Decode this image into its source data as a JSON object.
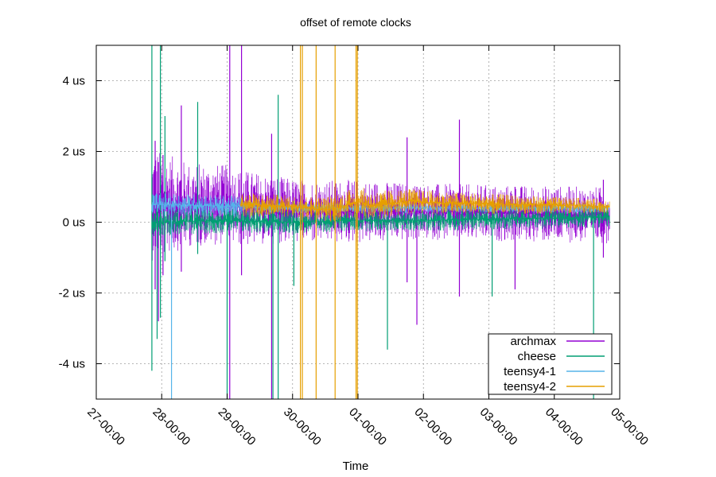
{
  "chart_data": {
    "type": "line",
    "title": "offset of remote clocks",
    "xlabel": "Time",
    "ylabel": "",
    "xlim": [
      0,
      8
    ],
    "ylim": [
      -5,
      5
    ],
    "x_ticks": [
      {
        "value": 0,
        "label": "27-00:00"
      },
      {
        "value": 1,
        "label": "28-00:00"
      },
      {
        "value": 2,
        "label": "29-00:00"
      },
      {
        "value": 3,
        "label": "30-00:00"
      },
      {
        "value": 4,
        "label": "01-00:00"
      },
      {
        "value": 5,
        "label": "02-00:00"
      },
      {
        "value": 6,
        "label": "03-00:00"
      },
      {
        "value": 7,
        "label": "04-00:00"
      },
      {
        "value": 8,
        "label": "05-00:00"
      }
    ],
    "y_ticks": [
      {
        "value": 4,
        "label": "4 us"
      },
      {
        "value": 2,
        "label": "2 us"
      },
      {
        "value": 0,
        "label": "0 us"
      },
      {
        "value": -2,
        "label": "-2 us"
      },
      {
        "value": -4,
        "label": "-4 us"
      }
    ],
    "grid": true,
    "legend_position": "bottom-right",
    "series": [
      {
        "name": "archmax",
        "color": "#9400d3",
        "x_start": 0.85,
        "x_end": 7.85,
        "center": [
          [
            0.85,
            0.5
          ],
          [
            2.0,
            0.5
          ],
          [
            2.25,
            0.4
          ],
          [
            3.3,
            0.3
          ],
          [
            4.0,
            0.3
          ],
          [
            5.0,
            0.3
          ],
          [
            7.85,
            0.2
          ]
        ],
        "halfwidth": [
          [
            0.85,
            1.6
          ],
          [
            1.4,
            1.2
          ],
          [
            2.2,
            1.1
          ],
          [
            3.0,
            0.9
          ],
          [
            4.0,
            0.9
          ],
          [
            5.0,
            0.8
          ],
          [
            7.85,
            0.8
          ]
        ],
        "spikes": [
          {
            "x": 0.9,
            "low": -1.9,
            "high": 2.3
          },
          {
            "x": 0.95,
            "low": -2.8,
            "high": 1.7
          },
          {
            "x": 1.02,
            "low": -1.5,
            "high": 1.9
          },
          {
            "x": 1.3,
            "low": -1.4,
            "high": 3.3
          },
          {
            "x": 2.04,
            "low": -5,
            "high": 5
          },
          {
            "x": 2.22,
            "low": -1.5,
            "high": 5
          },
          {
            "x": 2.68,
            "low": -5,
            "high": 2.5
          },
          {
            "x": 4.75,
            "low": -1.7,
            "high": 2.4
          },
          {
            "x": 4.9,
            "low": -2.9,
            "high": 1.0
          },
          {
            "x": 5.55,
            "low": -2.1,
            "high": 2.9
          },
          {
            "x": 6.4,
            "low": -1.9,
            "high": 1.0
          },
          {
            "x": 7.75,
            "low": -1.0,
            "high": 1.2
          }
        ]
      },
      {
        "name": "cheese",
        "color": "#009e73",
        "x_start": 0.85,
        "x_end": 7.85,
        "center": [
          [
            0.85,
            0.0
          ],
          [
            2.0,
            0.05
          ],
          [
            3.0,
            0.0
          ],
          [
            4.0,
            0.05
          ],
          [
            5.0,
            0.05
          ],
          [
            7.85,
            0.15
          ]
        ],
        "halfwidth": [
          [
            0.85,
            0.4
          ],
          [
            2.0,
            0.35
          ],
          [
            4.0,
            0.3
          ],
          [
            7.85,
            0.3
          ]
        ],
        "spikes": [
          {
            "x": 0.85,
            "low": -4.2,
            "high": 5
          },
          {
            "x": 0.93,
            "low": -3.3,
            "high": 0.4
          },
          {
            "x": 0.98,
            "low": -2.7,
            "high": 5
          },
          {
            "x": 1.05,
            "low": -1.1,
            "high": 3.0
          },
          {
            "x": 1.55,
            "low": -0.9,
            "high": 3.4
          },
          {
            "x": 2.0,
            "low": -5,
            "high": 0.5
          },
          {
            "x": 2.7,
            "low": -5,
            "high": 0.5
          },
          {
            "x": 2.78,
            "low": -5,
            "high": 3.6
          },
          {
            "x": 3.02,
            "low": -1.8,
            "high": 0.6
          },
          {
            "x": 4.45,
            "low": -3.6,
            "high": 0.5
          },
          {
            "x": 6.05,
            "low": -2.1,
            "high": 0.5
          },
          {
            "x": 7.6,
            "low": -5,
            "high": 0.5
          }
        ]
      },
      {
        "name": "teensy4-1",
        "color": "#56b4e9",
        "x_start": 0.85,
        "x_end": 7.85,
        "center": [
          [
            0.85,
            0.5
          ],
          [
            2.2,
            0.45
          ],
          [
            3.0,
            0.4
          ],
          [
            4.0,
            0.4
          ],
          [
            7.85,
            0.4
          ]
        ],
        "halfwidth": [
          [
            0.85,
            0.35
          ],
          [
            2.2,
            0.3
          ],
          [
            2.25,
            0.15
          ],
          [
            7.85,
            0.12
          ]
        ],
        "spikes": [
          {
            "x": 1.15,
            "low": -5,
            "high": 0.5
          }
        ]
      },
      {
        "name": "teensy4-2",
        "color": "#e69f00",
        "x_start": 2.2,
        "x_end": 7.85,
        "center": [
          [
            2.2,
            0.5
          ],
          [
            3.0,
            0.45
          ],
          [
            3.5,
            0.35
          ],
          [
            3.8,
            0.45
          ],
          [
            4.0,
            0.6
          ],
          [
            4.2,
            0.45
          ],
          [
            4.8,
            0.6
          ],
          [
            5.2,
            0.55
          ],
          [
            7.85,
            0.45
          ]
        ],
        "halfwidth": [
          [
            2.2,
            0.35
          ],
          [
            3.0,
            0.3
          ],
          [
            4.0,
            0.45
          ],
          [
            4.8,
            0.35
          ],
          [
            7.85,
            0.2
          ]
        ],
        "spikes": [
          {
            "x": 3.12,
            "low": -5,
            "high": 5
          },
          {
            "x": 3.15,
            "low": -5,
            "high": 5
          },
          {
            "x": 3.36,
            "low": -5,
            "high": 5
          },
          {
            "x": 3.65,
            "low": -5,
            "high": 5
          },
          {
            "x": 3.97,
            "low": -5,
            "high": 5
          },
          {
            "x": 3.99,
            "low": -5,
            "high": 5
          }
        ]
      }
    ]
  }
}
